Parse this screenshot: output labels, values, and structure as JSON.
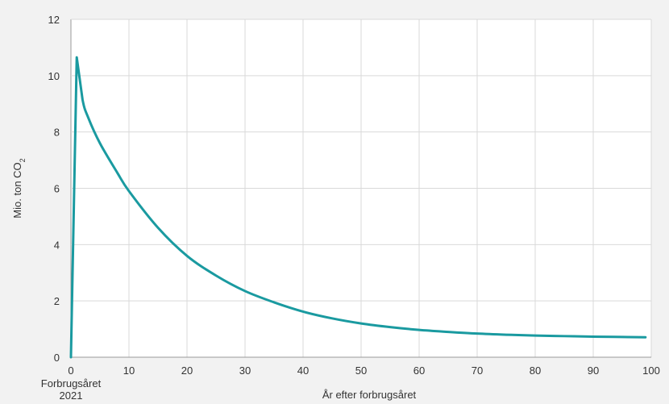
{
  "chart_data": {
    "type": "line",
    "title": "",
    "xlabel": "År efter forbrugsåret",
    "ylabel": "Mio. ton CO",
    "ylabel_subscript": "2",
    "x_first_tick_label_line1": "Forbrugsåret",
    "x_first_tick_label_line2": "2021",
    "xlim": [
      0,
      100
    ],
    "ylim": [
      0,
      12
    ],
    "x_ticks": [
      0,
      10,
      20,
      30,
      40,
      50,
      60,
      70,
      80,
      90,
      100
    ],
    "y_ticks": [
      0,
      2,
      4,
      6,
      8,
      10,
      12
    ],
    "grid": true,
    "colors": {
      "line": "#1a9aa0",
      "grid": "#d9d9d9",
      "plot_bg": "#ffffff",
      "page_bg": "#f2f2f2",
      "axis": "#999999"
    },
    "series": [
      {
        "x": [
          0,
          1,
          2,
          3,
          5,
          8,
          10,
          15,
          20,
          25,
          30,
          35,
          40,
          45,
          50,
          55,
          60,
          65,
          70,
          75,
          80,
          85,
          90,
          95,
          99
        ],
        "values": [
          0,
          10.65,
          9.15,
          8.5,
          7.6,
          6.55,
          5.9,
          4.6,
          3.6,
          2.9,
          2.35,
          1.95,
          1.62,
          1.38,
          1.2,
          1.07,
          0.97,
          0.9,
          0.84,
          0.8,
          0.77,
          0.75,
          0.73,
          0.72,
          0.71
        ]
      }
    ]
  }
}
